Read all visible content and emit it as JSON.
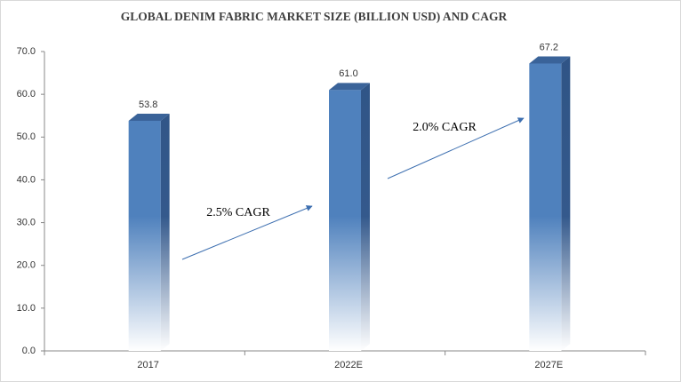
{
  "chart_data": {
    "type": "bar3d",
    "title": "GLOBAL DENIM FABRIC MARKET SIZE (BILLION USD) AND CAGR",
    "categories": [
      "2017",
      "2022E",
      "2027E"
    ],
    "values": [
      53.8,
      61,
      67.2
    ],
    "value_labels": [
      "53.8",
      "61.0",
      "67.2"
    ],
    "color": "#4f81bd",
    "ylim": [
      0,
      70
    ],
    "yticks": [
      {
        "value": 0,
        "label": "0.0"
      },
      {
        "value": 10,
        "label": "10.0"
      },
      {
        "value": 20,
        "label": "20.0"
      },
      {
        "value": 30,
        "label": "30.0"
      },
      {
        "value": 40,
        "label": "40.0"
      },
      {
        "value": 50,
        "label": "50.0"
      },
      {
        "value": 60,
        "label": "60.0"
      },
      {
        "value": 70,
        "label": "70.0"
      }
    ],
    "grid": false,
    "annotations": [
      "2.5% CAGR",
      "2.0% CAGR"
    ]
  }
}
